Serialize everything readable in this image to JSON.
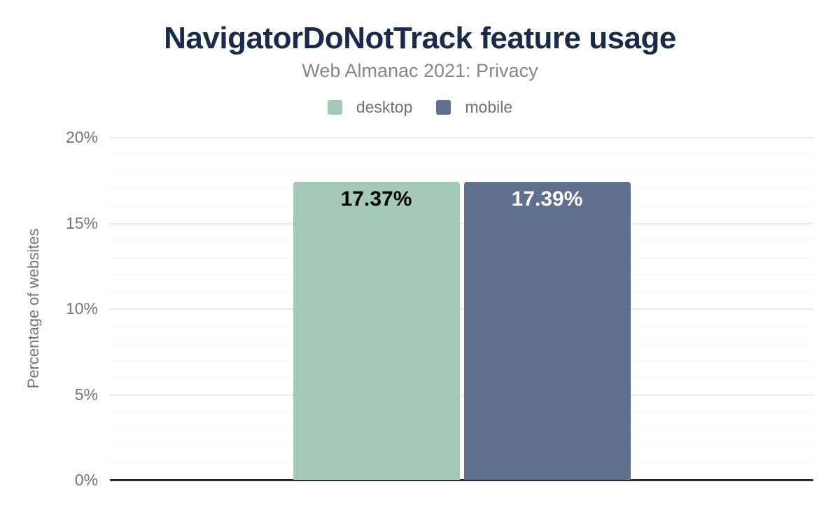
{
  "chart_data": {
    "type": "bar",
    "title": "NavigatorDoNotTrack feature usage",
    "subtitle": "Web Almanac 2021: Privacy",
    "categories": [
      "NavigatorDoNotTrack"
    ],
    "series": [
      {
        "name": "desktop",
        "values": [
          17.37
        ],
        "value_labels": [
          "17.37%"
        ],
        "color": "#a4c9b6",
        "value_label_color": "#000000"
      },
      {
        "name": "mobile",
        "values": [
          17.39
        ],
        "value_labels": [
          "17.39%"
        ],
        "color": "#5f708e",
        "value_label_color": "#ffffff"
      }
    ],
    "xlabel": "",
    "ylabel": "Percentage of websites",
    "ylim": [
      0,
      20
    ],
    "yticks": [
      0,
      5,
      10,
      15,
      20
    ],
    "ytick_labels": [
      "0%",
      "5%",
      "10%",
      "15%",
      "20%"
    ],
    "minor_grid_step": 1,
    "grid": true,
    "legend_position": "top",
    "legend": [
      "desktop",
      "mobile"
    ]
  },
  "colors": {
    "title_text": "#1a2b49",
    "subtitle_text": "#85878a",
    "axis_text": "#73767b",
    "legend_text": "#707276",
    "grid_minor": "#f5f5f5",
    "grid_major": "#ebebeb",
    "axis_line": "#2f2f2f",
    "background": "#ffffff",
    "desktop_series": "#a4c9b6",
    "mobile_series": "#5f708e"
  }
}
